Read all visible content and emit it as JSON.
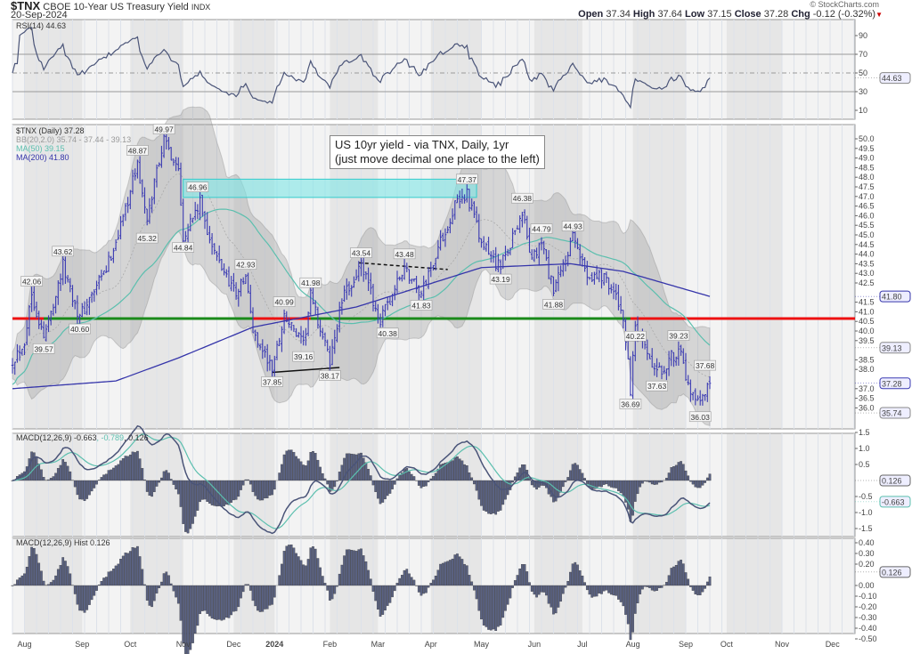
{
  "header": {
    "symbol": "$TNX",
    "name": "CBOE 10-Year US Treasury Yield",
    "exchange": "INDX",
    "date": "20-Sep-2024",
    "watermark": "© StockCharts.com",
    "open_label": "Open",
    "open": "37.34",
    "high_label": "High",
    "high": "37.64",
    "low_label": "Low",
    "low": "37.15",
    "close_label": "Close",
    "close": "37.28",
    "chg_label": "Chg",
    "chg": "-0.12 (-0.32%)"
  },
  "note": {
    "line1": "US 10yr yield - via TNX, Daily, 1yr",
    "line2": "(just move decimal one place to the left)"
  },
  "colors": {
    "bars": "#3a3ab2",
    "ma50": "#5bbfae",
    "ma200": "#3535aa",
    "support_green": "#1a8a1a",
    "support_red": "#ee1111",
    "resistance_zone": "#7fe6e6",
    "macd": "#4a5478",
    "signal": "#5bbfae",
    "hist": "#5a6282"
  },
  "chart_data": [
    {
      "type": "ohlc",
      "title": "$TNX (Daily) 37.28",
      "x_unit": "trading day index (0 = late Jul 2023, 290 = 20-Sep-2024)",
      "month_ticks": [
        {
          "t": 5,
          "label": "Aug"
        },
        {
          "t": 29,
          "label": "Sep"
        },
        {
          "t": 49,
          "label": "Oct"
        },
        {
          "t": 71,
          "label": "Nov"
        },
        {
          "t": 92,
          "label": "Dec"
        },
        {
          "t": 109,
          "label": "2024"
        },
        {
          "t": 132,
          "label": "Feb"
        },
        {
          "t": 152,
          "label": "Mar"
        },
        {
          "t": 174,
          "label": "Apr"
        },
        {
          "t": 195,
          "label": "May"
        },
        {
          "t": 217,
          "label": "Jun"
        },
        {
          "t": 237,
          "label": "Jul"
        },
        {
          "t": 258,
          "label": "Aug"
        },
        {
          "t": 280,
          "label": "Sep"
        },
        {
          "t": 297,
          "label": "Oct"
        },
        {
          "t": 320,
          "label": "Nov"
        },
        {
          "t": 341,
          "label": "Dec"
        }
      ],
      "close_path": [
        [
          0,
          38.5
        ],
        [
          5,
          39.5
        ],
        [
          8,
          42.0
        ],
        [
          13,
          39.6
        ],
        [
          21,
          43.4
        ],
        [
          28,
          40.7
        ],
        [
          39,
          43.2
        ],
        [
          45,
          45.5
        ],
        [
          52,
          48.7
        ],
        [
          56,
          45.5
        ],
        [
          60,
          48.5
        ],
        [
          63,
          49.9
        ],
        [
          69,
          48.5
        ],
        [
          71,
          45.0
        ],
        [
          78,
          46.6
        ],
        [
          84,
          44.0
        ],
        [
          93,
          42.0
        ],
        [
          97,
          42.8
        ],
        [
          100,
          40.0
        ],
        [
          108,
          38.0
        ],
        [
          113,
          40.8
        ],
        [
          121,
          39.2
        ],
        [
          124,
          41.8
        ],
        [
          132,
          38.4
        ],
        [
          137,
          41.6
        ],
        [
          145,
          43.4
        ],
        [
          153,
          40.5
        ],
        [
          163,
          43.3
        ],
        [
          170,
          41.9
        ],
        [
          176,
          44.0
        ],
        [
          184,
          46.5
        ],
        [
          189,
          47.2
        ],
        [
          195,
          44.5
        ],
        [
          203,
          43.3
        ],
        [
          212,
          46.2
        ],
        [
          216,
          43.6
        ],
        [
          220,
          44.6
        ],
        [
          225,
          42.0
        ],
        [
          233,
          44.8
        ],
        [
          239,
          43.0
        ],
        [
          247,
          42.8
        ],
        [
          254,
          40.8
        ],
        [
          257,
          36.9
        ],
        [
          259,
          40.0
        ],
        [
          268,
          37.7
        ],
        [
          277,
          39.1
        ],
        [
          282,
          36.6
        ],
        [
          286,
          36.1
        ],
        [
          290,
          37.28
        ]
      ],
      "ma200_path": [
        [
          0,
          37.0
        ],
        [
          43,
          37.4
        ],
        [
          69,
          38.6
        ],
        [
          100,
          40.2
        ],
        [
          143,
          41.25
        ],
        [
          195,
          43.3
        ],
        [
          232,
          43.5
        ],
        [
          254,
          43.1
        ],
        [
          290,
          41.8
        ]
      ],
      "support_level": 40.65,
      "resistance_zone": {
        "from_t": 71,
        "to_t": 193,
        "low": 46.95,
        "high": 47.9
      },
      "trendlines": [
        {
          "style": "dashed",
          "points": [
            [
              144,
              43.55
            ],
            [
              181,
              43.2
            ]
          ]
        },
        {
          "style": "solid",
          "points": [
            [
              108,
              37.85
            ],
            [
              136,
              38.1
            ]
          ]
        }
      ],
      "price_labels": [
        {
          "t": 8,
          "v": 42.06,
          "pos": "above"
        },
        {
          "t": 13,
          "v": 39.57,
          "pos": "below"
        },
        {
          "t": 21,
          "v": 43.62,
          "pos": "above"
        },
        {
          "t": 28,
          "v": 40.6,
          "pos": "below"
        },
        {
          "t": 52,
          "v": 48.87,
          "pos": "above"
        },
        {
          "t": 56,
          "v": 45.32,
          "pos": "below"
        },
        {
          "t": 63,
          "v": 49.97,
          "pos": "above"
        },
        {
          "t": 77,
          "v": 46.96,
          "pos": "above"
        },
        {
          "t": 71,
          "v": 44.84,
          "pos": "below"
        },
        {
          "t": 97,
          "v": 42.93,
          "pos": "above"
        },
        {
          "t": 108,
          "v": 37.85,
          "pos": "below"
        },
        {
          "t": 113,
          "v": 40.99,
          "pos": "above"
        },
        {
          "t": 121,
          "v": 39.16,
          "pos": "below"
        },
        {
          "t": 124,
          "v": 41.98,
          "pos": "above"
        },
        {
          "t": 132,
          "v": 38.17,
          "pos": "below"
        },
        {
          "t": 145,
          "v": 43.54,
          "pos": "above"
        },
        {
          "t": 156,
          "v": 40.38,
          "pos": "below"
        },
        {
          "t": 163,
          "v": 43.48,
          "pos": "above"
        },
        {
          "t": 170,
          "v": 41.83,
          "pos": "below"
        },
        {
          "t": 189,
          "v": 47.37,
          "pos": "above"
        },
        {
          "t": 212,
          "v": 46.38,
          "pos": "above"
        },
        {
          "t": 203,
          "v": 43.19,
          "pos": "below"
        },
        {
          "t": 220,
          "v": 44.79,
          "pos": "above"
        },
        {
          "t": 225,
          "v": 41.88,
          "pos": "below"
        },
        {
          "t": 233,
          "v": 44.93,
          "pos": "above"
        },
        {
          "t": 259,
          "v": 40.22,
          "pos": "below"
        },
        {
          "t": 257,
          "v": 36.69,
          "pos": "below"
        },
        {
          "t": 277,
          "v": 39.23,
          "pos": "above"
        },
        {
          "t": 268,
          "v": 37.63,
          "pos": "below"
        },
        {
          "t": 288,
          "v": 37.68,
          "pos": "above"
        },
        {
          "t": 286,
          "v": 36.03,
          "pos": "below"
        }
      ],
      "y_ticks": [
        "50.0",
        "49.5",
        "49.0",
        "48.5",
        "48.0",
        "47.5",
        "47.0",
        "46.5",
        "46.0",
        "45.5",
        "45.0",
        "44.5",
        "44.0",
        "43.5",
        "43.0",
        "42.5",
        "41.5",
        "41.0",
        "40.5",
        "40.0",
        "39.5",
        "38.5",
        "38.0",
        "37.0",
        "36.5",
        "36.0"
      ],
      "value_tags": [
        {
          "v": 41.8,
          "text": "41.80",
          "series": "ma200"
        },
        {
          "v": 39.13,
          "text": "39.13",
          "series": "bb_upper"
        },
        {
          "v": 37.28,
          "text": "37.28",
          "series": "close"
        },
        {
          "v": 35.74,
          "text": "35.74",
          "series": "bb_lower"
        }
      ],
      "legend": {
        "title": "$TNX (Daily) 37.28",
        "bb": "BB(20,2.0) 35.74 - 37.44 - 39.13",
        "ma50": "MA(50) 39.15",
        "ma200": "MA(200) 41.80"
      }
    },
    {
      "type": "line",
      "name": "RSI(14)",
      "legend": "RSI(14) 44.63",
      "y_ticks": [
        "90",
        "70",
        "50",
        "30",
        "10"
      ],
      "ylim": [
        0,
        100
      ],
      "tag": "44.63",
      "last": 44.63
    },
    {
      "type": "line",
      "name": "MACD",
      "legend_a": "MACD(12,26,9) -0.663",
      "legend_b": ", -0.789",
      "legend_c": ", 0.126",
      "y_ticks": [
        "1.5",
        "1.0",
        "0.5",
        "-0.5",
        "-1.0",
        "-1.5"
      ],
      "tags": [
        "0.126",
        "-0.663"
      ],
      "last": [
        -0.663,
        -0.789,
        0.126
      ]
    },
    {
      "type": "bar",
      "name": "MACD Hist",
      "legend": "MACD(12,26,9) Hist 0.126",
      "y_ticks": [
        "0.40",
        "0.30",
        "0.20",
        "0.00",
        "-0.10",
        "-0.20",
        "-0.30",
        "-0.40",
        "-0.50"
      ],
      "tag": "0.126"
    }
  ]
}
